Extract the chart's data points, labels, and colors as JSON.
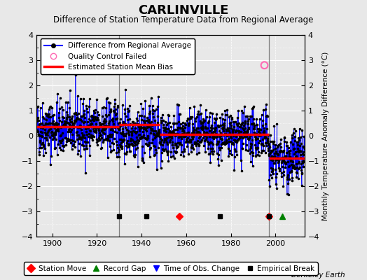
{
  "title": "CARLINVILLE",
  "subtitle": "Difference of Station Temperature Data from Regional Average",
  "ylabel": "Monthly Temperature Anomaly Difference (°C)",
  "background_color": "#e8e8e8",
  "plot_bg_color": "#e8e8e8",
  "xlim": [
    1893,
    2013
  ],
  "ylim": [
    -4,
    4
  ],
  "yticks": [
    -4,
    -3,
    -2,
    -1,
    0,
    1,
    2,
    3,
    4
  ],
  "xticks": [
    1900,
    1920,
    1940,
    1960,
    1980,
    2000
  ],
  "seed": 42,
  "segments": [
    {
      "start": 1893,
      "end": 1930,
      "mean": 0.3,
      "std": 0.55
    },
    {
      "start": 1930,
      "end": 1948,
      "mean": 0.15,
      "std": 0.55
    },
    {
      "start": 1948,
      "end": 1997,
      "mean": 0.0,
      "std": 0.48
    },
    {
      "start": 1997,
      "end": 2013,
      "mean": -0.9,
      "std": 0.55
    }
  ],
  "bias_segments": [
    {
      "start": 1893,
      "end": 1930,
      "value": 0.35
    },
    {
      "start": 1930,
      "end": 1948,
      "value": 0.45
    },
    {
      "start": 1948,
      "end": 1997,
      "value": 0.05
    },
    {
      "start": 1997,
      "end": 2013,
      "value": -0.9
    }
  ],
  "vertical_lines": [
    1930,
    1997
  ],
  "station_moves": [
    1957,
    1997
  ],
  "record_gaps": [
    2003
  ],
  "time_obs_changes": [],
  "empirical_breaks": [
    1930,
    1942,
    1975,
    1997
  ],
  "qc_failed_x": [
    1995
  ],
  "qc_failed_y": [
    2.8
  ],
  "event_y": -3.2,
  "berkeley_earth_label": "Berkeley Earth"
}
